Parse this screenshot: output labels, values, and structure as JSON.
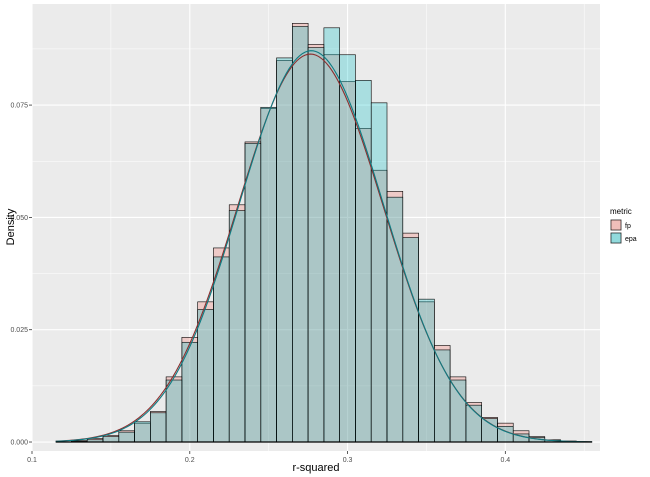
{
  "chart_data": {
    "type": "histogram",
    "xlabel": "r-squared",
    "ylabel": "Density",
    "xlim": [
      0.1,
      0.46
    ],
    "ylim": [
      -0.002,
      0.0975
    ],
    "x_ticks": [
      0.1,
      0.2,
      0.3,
      0.4
    ],
    "x_tick_labels": [
      "0.1",
      "0.2",
      "0.3",
      "0.4"
    ],
    "y_ticks": [
      0.0,
      0.025,
      0.05,
      0.075
    ],
    "y_tick_labels": [
      "0.000",
      "0.025",
      "0.050",
      "0.075"
    ],
    "grid": true,
    "legend": {
      "title": "metric",
      "position": "right",
      "entries": [
        {
          "label": "fp",
          "fill": "#F8766D"
        },
        {
          "label": "epa",
          "fill": "#00BFC4"
        }
      ]
    },
    "bin_width": 0.01,
    "bin_starts": [
      0.115,
      0.125,
      0.135,
      0.145,
      0.155,
      0.165,
      0.175,
      0.185,
      0.195,
      0.205,
      0.215,
      0.225,
      0.235,
      0.245,
      0.255,
      0.265,
      0.275,
      0.285,
      0.295,
      0.305,
      0.315,
      0.325,
      0.335,
      0.345,
      0.355,
      0.365,
      0.375,
      0.385,
      0.395,
      0.405,
      0.415,
      0.425,
      0.435,
      0.445
    ],
    "series": [
      {
        "name": "fp",
        "fill": "#F8766D",
        "values": [
          0.0,
          0.0003,
          0.0008,
          0.0015,
          0.0025,
          0.0042,
          0.0068,
          0.0145,
          0.0233,
          0.0312,
          0.0432,
          0.0528,
          0.0668,
          0.0742,
          0.0849,
          0.0932,
          0.0885,
          0.0862,
          0.0802,
          0.0698,
          0.0605,
          0.0558,
          0.0465,
          0.0312,
          0.0215,
          0.0145,
          0.0088,
          0.0055,
          0.0042,
          0.0025,
          0.0012,
          0.0005,
          0.0002,
          0.0
        ]
      },
      {
        "name": "epa",
        "fill": "#00BFC4",
        "values": [
          0.0,
          0.0002,
          0.0005,
          0.0012,
          0.0022,
          0.0045,
          0.0065,
          0.0138,
          0.0222,
          0.0295,
          0.0412,
          0.0515,
          0.0665,
          0.0745,
          0.0855,
          0.0925,
          0.0878,
          0.0922,
          0.0862,
          0.0805,
          0.0755,
          0.0545,
          0.0455,
          0.0318,
          0.0205,
          0.0138,
          0.0082,
          0.0052,
          0.0035,
          0.0018,
          0.001,
          0.0004,
          0.0002,
          0.0
        ]
      }
    ],
    "density_curves": [
      {
        "name": "fp",
        "color": "#8B2E2E",
        "mean": 0.2765,
        "sd": 0.0462,
        "x_range": [
          0.115,
          0.455
        ]
      },
      {
        "name": "epa",
        "color": "#0E7C83",
        "mean": 0.277,
        "sd": 0.0458,
        "x_range": [
          0.115,
          0.455
        ]
      }
    ]
  }
}
